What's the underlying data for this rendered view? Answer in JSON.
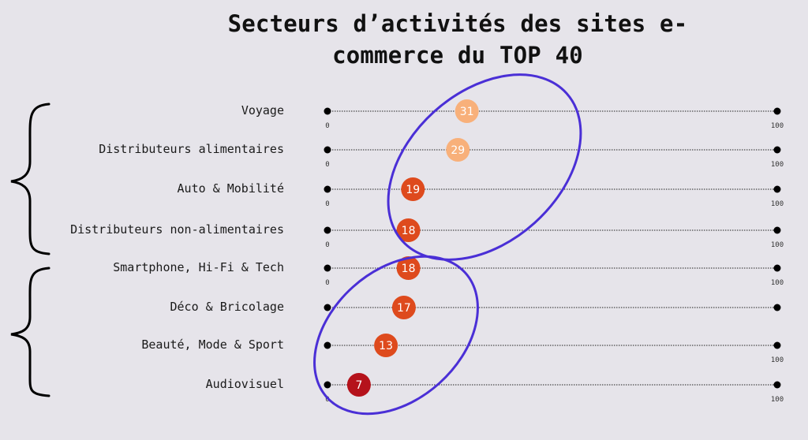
{
  "chart_data": {
    "type": "dot-plot",
    "title_lines": [
      "Secteurs d’activités des sites e-",
      "commerce du TOP 40"
    ],
    "xlim": [
      0,
      100
    ],
    "x_tick_labels": [
      "0",
      "100"
    ],
    "grid": false,
    "categories": [
      "Voyage",
      "Distributeurs alimentaires",
      "Auto & Mobilité",
      "Distributeurs non-alimentaires",
      "Smartphone, Hi-Fi & Tech",
      "Déco & Bricolage",
      "Beauté, Mode & Sport",
      "Audiovisuel"
    ],
    "values": [
      31,
      29,
      19,
      18,
      18,
      17,
      13,
      7
    ],
    "show_min_tick": [
      true,
      true,
      true,
      true,
      true,
      false,
      false,
      true
    ],
    "show_max_tick": [
      true,
      true,
      true,
      true,
      true,
      false,
      true,
      true
    ],
    "colors": {
      "high": "#f8b07a",
      "mid": "#de4a1d",
      "low": "#b5121b",
      "annotation": "#4a2fd6"
    }
  }
}
